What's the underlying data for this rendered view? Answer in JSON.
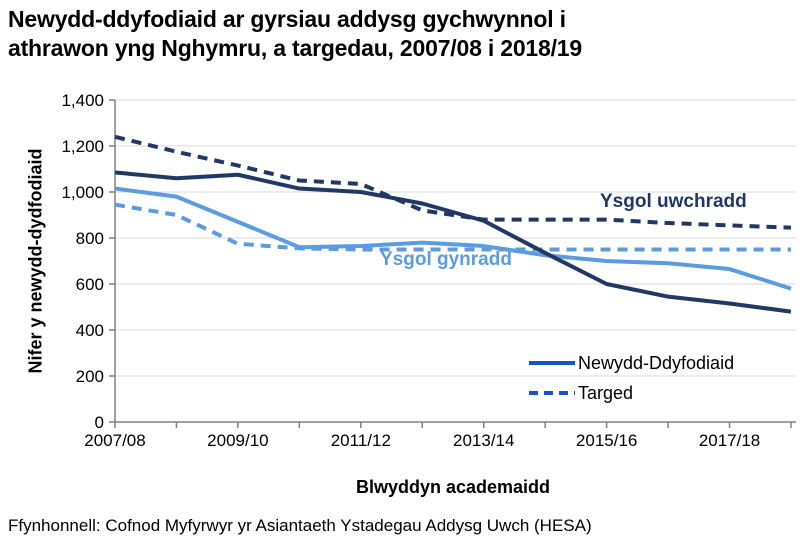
{
  "header": {
    "title_line1": "Newydd-ddyfodiaid ar gyrsiau addysg gychwynnol i",
    "title_line2": "athrawon yng Nghymru, a targedau, 2007/08 i 2018/19"
  },
  "source": "Ffynhonnell: Cofnod Myfyrwyr yr Asiantaeth Ystadegau Addysg Uwch (HESA)",
  "colors": {
    "grid": "#d9d9d9",
    "axis": "#808080",
    "dark_blue": "#1f3864",
    "light_blue": "#5b9be0",
    "legend_blue": "#1155cc",
    "text": "#000000"
  },
  "chart_data": {
    "type": "line",
    "title": "Newydd-ddyfodiaid ar gyrsiau addysg gychwynnol i athrawon yng Nghymru, a targedau, 2007/08 i 2018/19",
    "xlabel": "Blwyddyn academaidd",
    "ylabel": "Nifer y newydd-dydfodiaid",
    "ylim": [
      0,
      1400
    ],
    "grid": true,
    "y_ticks": [
      0,
      200,
      400,
      600,
      800,
      1000,
      1200,
      1400
    ],
    "y_tick_labels": [
      "0",
      "200",
      "400",
      "600",
      "800",
      "1,000",
      "1,200",
      "1,400"
    ],
    "categories": [
      "2007/08",
      "2008/09",
      "2009/10",
      "2010/11",
      "2011/12",
      "2012/13",
      "2013/14",
      "2014/15",
      "2015/16",
      "2016/17",
      "2017/18",
      "2018/19"
    ],
    "x_tick_labels_shown": [
      "2007/08",
      "2009/10",
      "2011/12",
      "2013/14",
      "2015/16",
      "2017/18"
    ],
    "series": [
      {
        "name": "Ysgol uwchradd - Newydd-Ddyfodiaid",
        "style": "solid",
        "color": "#1f3864",
        "values": [
          1085,
          1060,
          1075,
          1015,
          1000,
          950,
          875,
          735,
          600,
          545,
          515,
          480
        ]
      },
      {
        "name": "Ysgol uwchradd - Targed",
        "style": "dashed",
        "color": "#1f3864",
        "values": [
          1240,
          1175,
          1115,
          1050,
          1035,
          920,
          880,
          880,
          880,
          865,
          855,
          845
        ]
      },
      {
        "name": "Ysgol gynradd - Newydd-Ddyfodiaid",
        "style": "solid",
        "color": "#5b9be0",
        "values": [
          1015,
          980,
          870,
          760,
          765,
          780,
          765,
          725,
          700,
          690,
          665,
          580
        ]
      },
      {
        "name": "Ysgol gynradd - Targed",
        "style": "dashed",
        "color": "#5b9be0",
        "values": [
          945,
          900,
          775,
          755,
          750,
          750,
          750,
          750,
          750,
          750,
          750,
          750
        ]
      }
    ],
    "annotations": [
      {
        "text": "Ysgol uwchradd",
        "color": "#1f3864"
      },
      {
        "text": "Ysgol gynradd",
        "color": "#5b9be0"
      }
    ],
    "legend": {
      "position": "inside-bottom-right",
      "color": "#1155cc",
      "entries": [
        {
          "label": "Newydd-Ddyfodiaid",
          "style": "solid"
        },
        {
          "label": "Targed",
          "style": "dashed"
        }
      ]
    }
  }
}
